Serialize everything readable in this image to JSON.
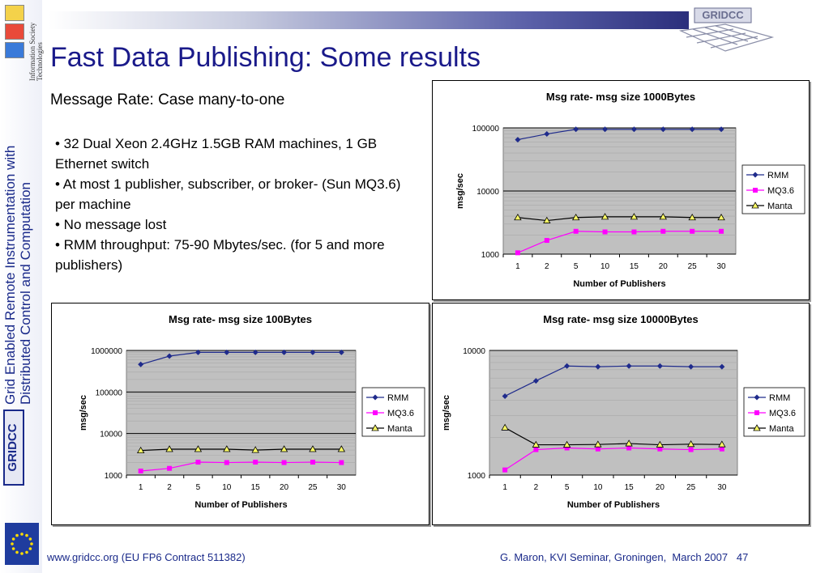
{
  "header": {
    "title": "Fast Data Publishing: Some results",
    "subtitle": "Message Rate: Case many-to-one",
    "logo_text": "GRIDCC"
  },
  "sidebar": {
    "title_line1": "Grid Enabled Remote Instrumentation with",
    "title_line2": "Distributed Control and Computation",
    "logo_text": "GRIDCC",
    "society_text": "Information Society Technologies"
  },
  "bullets": [
    "•  32 Dual Xeon 2.4GHz 1.5GB RAM machines, 1 GB Ethernet switch",
    "• At most 1 publisher, subscriber, or    broker- (Sun MQ3.6) per machine",
    "• No message lost",
    "• RMM throughput: 75-90 Mbytes/sec. (for 5 and more publishers)"
  ],
  "footer": {
    "url": "www.gridcc.org (EU FP6 Contract 511382)",
    "credit": "G. Maron, KVI Seminar, Groningen,  March 2007   47"
  },
  "colors": {
    "title": "#1a1a8a",
    "rmm": "#1f2b8c",
    "mq": "#ff00ff",
    "manta": "#ffff66",
    "plot_bg": "#c0c0c0"
  },
  "chart_data": [
    {
      "type": "line",
      "title": "Msg rate- msg size 1000Bytes",
      "xlabel": "Number of Publishers",
      "ylabel": "msg/sec",
      "scale": "log",
      "ylim": [
        1000,
        100000
      ],
      "yticks": [
        "1000",
        "10000",
        "100000"
      ],
      "categories": [
        "1",
        "2",
        "5",
        "10",
        "15",
        "20",
        "25",
        "30"
      ],
      "legend_position": "right",
      "series": [
        {
          "name": "RMM",
          "values": [
            65000,
            80000,
            95000,
            95000,
            95000,
            95000,
            95000,
            95000
          ]
        },
        {
          "name": "MQ3.6",
          "values": [
            1050,
            1650,
            2300,
            2250,
            2250,
            2300,
            2300,
            2300
          ]
        },
        {
          "name": "Manta",
          "values": [
            3800,
            3400,
            3800,
            3900,
            3900,
            3900,
            3800,
            3800
          ]
        }
      ]
    },
    {
      "type": "line",
      "title": "Msg rate- msg size 100Bytes",
      "xlabel": "Number of Publishers",
      "ylabel": "msg/sec",
      "scale": "log",
      "ylim": [
        1000,
        1000000
      ],
      "yticks": [
        "1000",
        "10000",
        "100000",
        "1000000"
      ],
      "categories": [
        "1",
        "2",
        "5",
        "10",
        "15",
        "20",
        "25",
        "30"
      ],
      "legend_position": "right",
      "series": [
        {
          "name": "RMM",
          "values": [
            460000,
            730000,
            900000,
            900000,
            900000,
            900000,
            900000,
            900000
          ]
        },
        {
          "name": "MQ3.6",
          "values": [
            1250,
            1450,
            2050,
            2000,
            2050,
            2000,
            2050,
            2000
          ]
        },
        {
          "name": "Manta",
          "values": [
            3900,
            4200,
            4200,
            4200,
            4000,
            4200,
            4200,
            4200
          ]
        }
      ]
    },
    {
      "type": "line",
      "title": "Msg rate- msg size 10000Bytes",
      "xlabel": "Number of Publishers",
      "ylabel": "msg/sec",
      "scale": "log",
      "ylim": [
        1000,
        10000
      ],
      "yticks": [
        "1000",
        "10000"
      ],
      "categories": [
        "1",
        "2",
        "5",
        "10",
        "15",
        "20",
        "25",
        "30"
      ],
      "legend_position": "right",
      "series": [
        {
          "name": "RMM",
          "values": [
            4300,
            5700,
            7500,
            7400,
            7500,
            7500,
            7400,
            7400
          ]
        },
        {
          "name": "MQ3.6",
          "values": [
            1100,
            1600,
            1650,
            1620,
            1650,
            1620,
            1600,
            1620
          ]
        },
        {
          "name": "Manta",
          "values": [
            2400,
            1750,
            1750,
            1760,
            1790,
            1750,
            1770,
            1760
          ]
        }
      ]
    }
  ]
}
